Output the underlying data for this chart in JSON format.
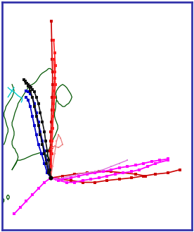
{
  "fig_width": 2.76,
  "fig_height": 3.29,
  "dpi": 100,
  "background_color": "#ffffff",
  "border_color": "#3333aa",
  "xlim": [
    128,
    175
  ],
  "ylim": [
    22,
    58
  ],
  "coastline_color": "#005500",
  "river_color": "#00cccc",
  "coastlines": {
    "honshu_east": [
      [
        140.5,
        36.0
      ],
      [
        140.8,
        36.5
      ],
      [
        141.2,
        37.0
      ],
      [
        141.5,
        37.5
      ],
      [
        141.8,
        38.0
      ],
      [
        141.8,
        38.5
      ],
      [
        141.5,
        39.0
      ],
      [
        141.2,
        39.5
      ],
      [
        141.0,
        40.0
      ],
      [
        141.0,
        40.5
      ],
      [
        141.2,
        41.0
      ],
      [
        141.3,
        41.5
      ],
      [
        141.3,
        42.0
      ],
      [
        141.5,
        42.5
      ],
      [
        141.5,
        43.0
      ],
      [
        141.3,
        43.5
      ],
      [
        141.5,
        44.0
      ],
      [
        142.0,
        44.5
      ],
      [
        142.5,
        44.8
      ],
      [
        143.0,
        45.0
      ],
      [
        143.5,
        44.8
      ],
      [
        144.0,
        44.5
      ],
      [
        144.5,
        44.0
      ],
      [
        145.0,
        43.5
      ],
      [
        145.3,
        43.0
      ],
      [
        145.0,
        42.5
      ],
      [
        144.5,
        42.0
      ],
      [
        144.0,
        41.8
      ],
      [
        143.5,
        41.5
      ],
      [
        143.0,
        41.5
      ],
      [
        142.5,
        41.8
      ],
      [
        142.0,
        42.0
      ],
      [
        141.8,
        42.3
      ],
      [
        141.5,
        42.5
      ]
    ],
    "honshu_west": [
      [
        130.5,
        31.5
      ],
      [
        130.8,
        31.8
      ],
      [
        131.2,
        32.2
      ],
      [
        131.5,
        32.5
      ],
      [
        131.8,
        33.0
      ],
      [
        132.0,
        33.5
      ],
      [
        131.8,
        34.0
      ],
      [
        131.5,
        34.3
      ],
      [
        131.2,
        34.8
      ],
      [
        130.8,
        35.0
      ],
      [
        130.5,
        35.5
      ],
      [
        130.5,
        36.0
      ],
      [
        130.8,
        36.5
      ],
      [
        131.0,
        37.0
      ],
      [
        131.0,
        37.5
      ],
      [
        130.8,
        38.0
      ],
      [
        130.5,
        38.5
      ],
      [
        130.5,
        39.0
      ],
      [
        130.8,
        39.5
      ],
      [
        131.0,
        40.0
      ],
      [
        131.2,
        40.5
      ],
      [
        131.5,
        41.0
      ],
      [
        131.8,
        41.5
      ],
      [
        132.0,
        42.0
      ],
      [
        132.5,
        42.5
      ],
      [
        133.0,
        43.0
      ],
      [
        133.5,
        43.5
      ],
      [
        134.0,
        44.0
      ],
      [
        134.5,
        44.5
      ],
      [
        135.0,
        44.8
      ],
      [
        135.5,
        45.0
      ],
      [
        136.0,
        45.2
      ],
      [
        136.5,
        45.5
      ],
      [
        137.0,
        46.0
      ],
      [
        137.5,
        46.5
      ],
      [
        138.0,
        46.8
      ],
      [
        138.5,
        47.0
      ],
      [
        139.0,
        47.2
      ],
      [
        139.5,
        47.5
      ],
      [
        140.0,
        47.5
      ],
      [
        140.5,
        47.2
      ],
      [
        141.0,
        47.0
      ]
    ],
    "honshu_south": [
      [
        140.5,
        36.0
      ],
      [
        140.2,
        35.5
      ],
      [
        139.8,
        35.0
      ],
      [
        139.5,
        34.5
      ],
      [
        139.2,
        34.0
      ],
      [
        139.0,
        33.5
      ],
      [
        138.8,
        33.0
      ],
      [
        139.0,
        32.5
      ],
      [
        139.2,
        32.0
      ],
      [
        139.5,
        31.5
      ],
      [
        139.8,
        31.2
      ],
      [
        140.0,
        31.0
      ],
      [
        140.2,
        31.5
      ],
      [
        140.2,
        32.0
      ],
      [
        140.0,
        32.5
      ],
      [
        139.8,
        33.0
      ],
      [
        139.5,
        33.5
      ],
      [
        138.5,
        34.0
      ],
      [
        137.5,
        34.2
      ],
      [
        136.5,
        34.0
      ],
      [
        135.5,
        33.8
      ],
      [
        134.5,
        33.5
      ],
      [
        133.5,
        33.2
      ],
      [
        132.5,
        33.0
      ],
      [
        131.8,
        33.0
      ],
      [
        130.5,
        31.5
      ]
    ],
    "peninsula": [
      [
        128.5,
        35.5
      ],
      [
        128.8,
        36.0
      ],
      [
        129.0,
        36.5
      ],
      [
        129.2,
        37.0
      ],
      [
        129.5,
        37.5
      ],
      [
        129.5,
        38.0
      ],
      [
        129.2,
        38.5
      ],
      [
        129.0,
        39.0
      ],
      [
        128.8,
        39.5
      ],
      [
        128.5,
        40.0
      ],
      [
        128.5,
        40.5
      ],
      [
        128.8,
        41.0
      ],
      [
        129.0,
        41.5
      ],
      [
        129.5,
        42.0
      ],
      [
        130.0,
        42.5
      ],
      [
        130.5,
        43.0
      ],
      [
        130.8,
        43.5
      ],
      [
        131.0,
        44.0
      ],
      [
        130.8,
        44.5
      ],
      [
        130.5,
        45.0
      ]
    ],
    "small_island1": [
      [
        128.2,
        26.2
      ],
      [
        128.5,
        26.5
      ],
      [
        128.5,
        26.8
      ],
      [
        128.2,
        27.0
      ],
      [
        127.8,
        26.8
      ],
      [
        127.8,
        26.5
      ],
      [
        128.2,
        26.2
      ]
    ],
    "small_island2": [
      [
        129.5,
        26.8
      ],
      [
        129.8,
        27.0
      ],
      [
        129.8,
        27.3
      ],
      [
        129.5,
        27.5
      ],
      [
        129.2,
        27.3
      ],
      [
        129.2,
        27.0
      ],
      [
        129.5,
        26.8
      ]
    ]
  },
  "rivers": [
    {
      "pts": [
        [
          129.5,
          44.5
        ],
        [
          130.0,
          44.2
        ],
        [
          130.5,
          44.0
        ],
        [
          131.0,
          43.8
        ],
        [
          131.5,
          43.5
        ],
        [
          132.0,
          43.2
        ],
        [
          132.5,
          43.0
        ],
        [
          133.0,
          42.8
        ],
        [
          133.0,
          42.5
        ],
        [
          132.8,
          42.2
        ]
      ],
      "color": "#00cccc"
    },
    {
      "pts": [
        [
          129.5,
          43.0
        ],
        [
          130.0,
          43.5
        ],
        [
          130.5,
          44.0
        ],
        [
          131.0,
          44.5
        ]
      ],
      "color": "#00cccc"
    }
  ],
  "tracks": [
    {
      "color": "#cc0000",
      "lw": 1.2,
      "ms": 2.5,
      "segments": [
        [
          [
            140.2,
            55.0
          ],
          [
            140.3,
            52.0
          ],
          [
            140.4,
            49.0
          ],
          [
            140.5,
            47.0
          ],
          [
            140.5,
            45.0
          ],
          [
            140.4,
            43.0
          ],
          [
            140.3,
            41.0
          ],
          [
            140.2,
            39.0
          ],
          [
            140.1,
            37.5
          ],
          [
            140.0,
            36.0
          ],
          [
            139.9,
            34.5
          ],
          [
            139.9,
            33.0
          ],
          [
            140.0,
            31.5
          ],
          [
            140.1,
            30.2
          ]
        ],
        [
          [
            140.1,
            30.2
          ],
          [
            142.0,
            30.0
          ],
          [
            145.0,
            29.8
          ],
          [
            148.0,
            29.5
          ],
          [
            151.0,
            29.5
          ],
          [
            154.0,
            29.8
          ],
          [
            157.0,
            30.0
          ],
          [
            160.0,
            30.2
          ],
          [
            163.0,
            30.5
          ],
          [
            166.0,
            30.8
          ],
          [
            169.0,
            31.0
          ],
          [
            172.0,
            31.5
          ]
        ],
        [
          [
            140.1,
            30.2
          ],
          [
            143.0,
            30.5
          ],
          [
            146.0,
            30.8
          ],
          [
            149.0,
            31.0
          ],
          [
            152.0,
            31.2
          ],
          [
            155.0,
            31.2
          ],
          [
            158.0,
            31.0
          ],
          [
            161.0,
            30.8
          ],
          [
            163.5,
            30.5
          ]
        ]
      ]
    },
    {
      "color": "#ff2020",
      "lw": 1.2,
      "ms": 2.5,
      "segments": [
        [
          [
            140.1,
            30.2
          ],
          [
            140.2,
            32.0
          ],
          [
            140.3,
            34.0
          ],
          [
            140.4,
            36.0
          ],
          [
            140.5,
            38.0
          ],
          [
            140.6,
            40.0
          ],
          [
            140.7,
            42.0
          ],
          [
            140.8,
            44.0
          ],
          [
            141.0,
            46.0
          ],
          [
            141.2,
            48.0
          ],
          [
            141.0,
            50.0
          ],
          [
            140.8,
            52.0
          ]
        ],
        [
          [
            140.1,
            30.2
          ],
          [
            140.3,
            35.0
          ],
          [
            140.5,
            38.0
          ],
          [
            140.8,
            41.0
          ],
          [
            141.0,
            43.0
          ],
          [
            141.2,
            45.0
          ],
          [
            141.0,
            47.0
          ],
          [
            140.8,
            49.0
          ]
        ]
      ]
    },
    {
      "color": "#ee8888",
      "lw": 1.0,
      "ms": 2.0,
      "segments": [
        [
          [
            140.1,
            30.2
          ],
          [
            140.5,
            32.0
          ],
          [
            141.0,
            34.0
          ],
          [
            141.5,
            36.0
          ],
          [
            142.0,
            37.0
          ],
          [
            142.5,
            36.5
          ],
          [
            143.0,
            35.5
          ],
          [
            142.0,
            35.0
          ],
          [
            141.0,
            35.2
          ],
          [
            140.5,
            35.0
          ]
        ]
      ]
    },
    {
      "color": "#0000cc",
      "lw": 1.3,
      "ms": 2.5,
      "segments": [
        [
          [
            140.1,
            30.2
          ],
          [
            139.5,
            31.5
          ],
          [
            139.0,
            33.0
          ],
          [
            138.5,
            34.5
          ],
          [
            138.0,
            36.0
          ],
          [
            137.5,
            37.5
          ],
          [
            137.0,
            39.0
          ],
          [
            136.5,
            40.5
          ],
          [
            136.0,
            42.0
          ],
          [
            135.5,
            43.0
          ],
          [
            135.0,
            43.5
          ],
          [
            134.5,
            43.8
          ],
          [
            134.0,
            44.0
          ]
        ],
        [
          [
            140.1,
            30.2
          ],
          [
            139.2,
            31.0
          ],
          [
            138.5,
            32.5
          ],
          [
            137.8,
            34.0
          ],
          [
            137.0,
            35.5
          ],
          [
            136.5,
            37.0
          ],
          [
            136.0,
            38.5
          ],
          [
            135.5,
            40.0
          ],
          [
            135.0,
            41.5
          ],
          [
            134.5,
            42.5
          ],
          [
            134.0,
            43.0
          ]
        ]
      ]
    },
    {
      "color": "#111111",
      "lw": 1.2,
      "ms": 2.5,
      "segments": [
        [
          [
            140.1,
            30.2
          ],
          [
            139.8,
            31.5
          ],
          [
            139.5,
            33.0
          ],
          [
            139.2,
            34.5
          ],
          [
            138.8,
            36.0
          ],
          [
            138.5,
            37.5
          ],
          [
            138.0,
            39.0
          ],
          [
            137.5,
            40.5
          ],
          [
            137.0,
            42.0
          ],
          [
            136.5,
            43.0
          ],
          [
            136.0,
            43.8
          ],
          [
            135.5,
            44.2
          ],
          [
            135.2,
            44.5
          ],
          [
            134.8,
            44.8
          ],
          [
            134.5,
            45.0
          ],
          [
            134.2,
            45.2
          ],
          [
            133.8,
            45.5
          ],
          [
            133.5,
            45.8
          ]
        ],
        [
          [
            140.1,
            30.2
          ],
          [
            139.5,
            31.0
          ],
          [
            139.0,
            32.5
          ],
          [
            138.5,
            34.0
          ],
          [
            138.0,
            35.5
          ],
          [
            137.5,
            37.0
          ],
          [
            137.0,
            38.5
          ],
          [
            136.5,
            40.0
          ],
          [
            136.0,
            41.5
          ],
          [
            135.5,
            43.0
          ],
          [
            135.0,
            44.0
          ],
          [
            134.5,
            44.8
          ],
          [
            134.0,
            45.2
          ]
        ]
      ]
    },
    {
      "color": "#ff00ff",
      "lw": 1.3,
      "ms": 2.5,
      "segments": [
        [
          [
            140.1,
            30.2
          ],
          [
            142.0,
            29.8
          ],
          [
            144.0,
            29.5
          ],
          [
            146.0,
            29.5
          ],
          [
            148.0,
            29.8
          ],
          [
            150.0,
            30.0
          ],
          [
            152.0,
            30.2
          ],
          [
            154.0,
            30.5
          ],
          [
            156.0,
            30.8
          ],
          [
            158.0,
            31.0
          ],
          [
            160.0,
            31.2
          ],
          [
            162.0,
            31.5
          ],
          [
            164.0,
            32.0
          ],
          [
            166.0,
            32.5
          ],
          [
            169.0,
            33.0
          ]
        ],
        [
          [
            140.1,
            30.2
          ],
          [
            138.5,
            29.5
          ],
          [
            137.0,
            28.5
          ],
          [
            135.5,
            27.5
          ],
          [
            134.0,
            26.5
          ],
          [
            132.5,
            25.5
          ],
          [
            131.0,
            24.5
          ]
        ],
        [
          [
            140.1,
            30.2
          ],
          [
            141.5,
            30.0
          ],
          [
            143.0,
            30.0
          ],
          [
            145.0,
            30.2
          ],
          [
            147.0,
            30.5
          ],
          [
            149.0,
            30.8
          ],
          [
            151.0,
            31.0
          ],
          [
            153.0,
            31.2
          ],
          [
            155.0,
            31.5
          ],
          [
            157.0,
            31.8
          ],
          [
            159.0,
            32.0
          ],
          [
            161.0,
            32.2
          ],
          [
            163.0,
            32.5
          ],
          [
            165.0,
            32.8
          ],
          [
            167.0,
            33.0
          ],
          [
            169.0,
            33.2
          ]
        ]
      ]
    },
    {
      "color": "#dd77dd",
      "lw": 1.0,
      "ms": 2.0,
      "segments": [
        [
          [
            140.1,
            30.2
          ],
          [
            141.5,
            30.0
          ],
          [
            143.0,
            30.2
          ],
          [
            145.0,
            30.5
          ],
          [
            147.0,
            30.8
          ],
          [
            149.0,
            31.0
          ],
          [
            151.0,
            31.2
          ],
          [
            153.0,
            31.5
          ],
          [
            155.0,
            32.0
          ],
          [
            157.0,
            32.5
          ],
          [
            159.0,
            33.0
          ]
        ]
      ]
    }
  ],
  "torishima": [
    140.1,
    30.2
  ]
}
